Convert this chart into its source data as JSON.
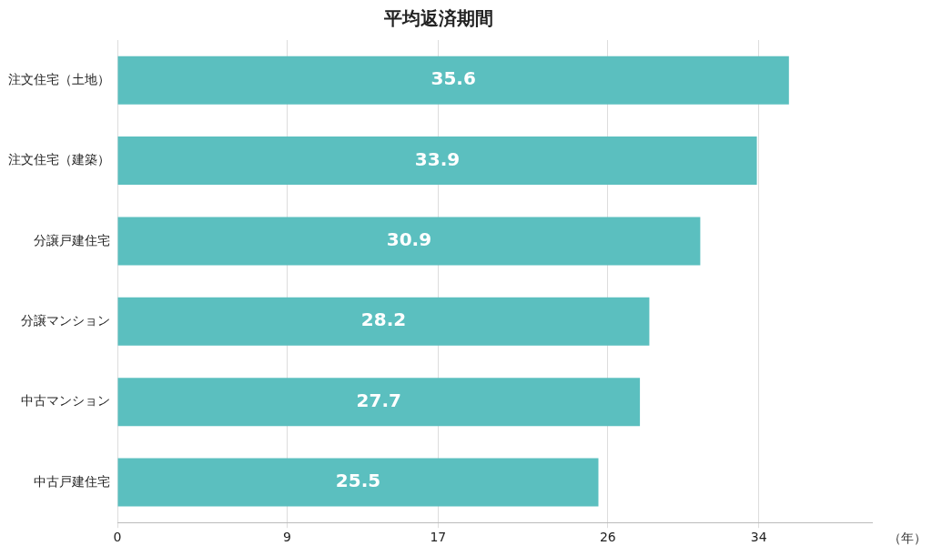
{
  "chart_data": {
    "type": "bar",
    "orientation": "horizontal",
    "title": "平均返済期間",
    "xlabel": "（年）",
    "categories": [
      "注文住宅（土地）",
      "注文住宅（建築）",
      "分譲戸建住宅",
      "分譲マンション",
      "中古マンション",
      "中古戸建住宅"
    ],
    "values": [
      35.6,
      33.9,
      30.9,
      28.2,
      27.7,
      25.5
    ],
    "color": "#5bbfbf",
    "xlim": [
      0,
      40
    ],
    "xticks": [
      0,
      9,
      17,
      26,
      34
    ],
    "grid": "x",
    "data_labels": true,
    "legend": false
  }
}
